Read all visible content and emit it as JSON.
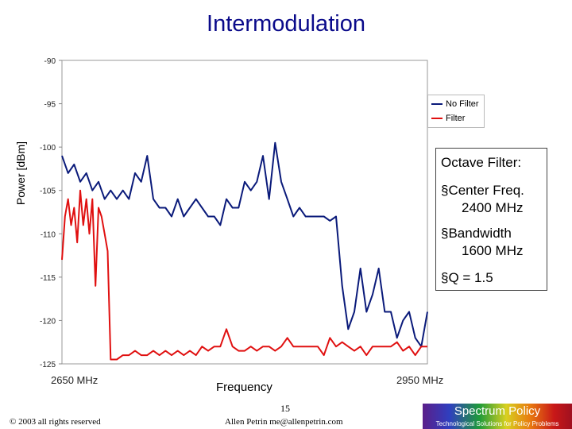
{
  "slide": {
    "title": "Intermodulation",
    "annotation": {
      "heading": "Octave Filter:",
      "items": [
        {
          "label": "§Center Freq.",
          "value": "2400 MHz"
        },
        {
          "label": "§Bandwidth",
          "value": "1600 MHz"
        },
        {
          "label": "§Q = 1.5",
          "value": ""
        }
      ]
    },
    "footer": {
      "copyright": "© 2003 all rights reserved",
      "page": "15",
      "author": "Allen Petrin  me@allenpetrin.com",
      "logo_title": "Spectrum Policy",
      "logo_tagline": "Technological Solutions for Policy Problems"
    }
  },
  "chart_data": {
    "type": "line",
    "title": "Intermodulation",
    "xlabel": "Frequency",
    "ylabel": "Power [dBm]",
    "x_tick_labels": [
      {
        "label": "2650 MHz",
        "value": 2650
      },
      {
        "label": "2950 MHz",
        "value": 2950
      }
    ],
    "xlim": [
      2630,
      2990
    ],
    "ylim": [
      -125,
      -90
    ],
    "yticks": [
      -90,
      -95,
      -100,
      -105,
      -110,
      -115,
      -120,
      -125
    ],
    "grid": false,
    "legend_position": "top-right",
    "colors": {
      "No Filter": "#0a1a7a",
      "Filter": "#e01010"
    },
    "series": [
      {
        "name": "No Filter",
        "x": [
          2630,
          2636,
          2642,
          2648,
          2654,
          2660,
          2666,
          2672,
          2678,
          2684,
          2690,
          2696,
          2702,
          2708,
          2714,
          2720,
          2726,
          2732,
          2738,
          2744,
          2750,
          2756,
          2762,
          2768,
          2774,
          2780,
          2786,
          2792,
          2798,
          2804,
          2810,
          2816,
          2822,
          2828,
          2834,
          2840,
          2846,
          2852,
          2858,
          2864,
          2870,
          2876,
          2882,
          2888,
          2894,
          2900,
          2906,
          2912,
          2918,
          2924,
          2930,
          2936,
          2942,
          2948,
          2954,
          2960,
          2966,
          2972,
          2978,
          2984,
          2990
        ],
        "y": [
          -101,
          -103,
          -102,
          -104,
          -103,
          -105,
          -104,
          -106,
          -105,
          -106,
          -105,
          -106,
          -103,
          -104,
          -101,
          -106,
          -107,
          -107,
          -108,
          -106,
          -108,
          -107,
          -106,
          -107,
          -108,
          -108,
          -109,
          -106,
          -107,
          -107,
          -104,
          -105,
          -104,
          -101,
          -106,
          -99.5,
          -104,
          -106,
          -108,
          -107,
          -108,
          -108,
          -108,
          -108,
          -108.5,
          -108,
          -116,
          -121,
          -119,
          -114,
          -119,
          -117,
          -114,
          -119,
          -119,
          -122,
          -120,
          -119,
          -122,
          -123,
          -119
        ]
      },
      {
        "name": "Filter",
        "x": [
          2630,
          2633,
          2636,
          2639,
          2642,
          2645,
          2648,
          2651,
          2654,
          2657,
          2660,
          2663,
          2666,
          2669,
          2672,
          2675,
          2678,
          2684,
          2690,
          2696,
          2702,
          2708,
          2714,
          2720,
          2726,
          2732,
          2738,
          2744,
          2750,
          2756,
          2762,
          2768,
          2774,
          2780,
          2786,
          2792,
          2798,
          2804,
          2810,
          2816,
          2822,
          2828,
          2834,
          2840,
          2846,
          2852,
          2858,
          2864,
          2870,
          2876,
          2882,
          2888,
          2894,
          2900,
          2906,
          2912,
          2918,
          2924,
          2930,
          2936,
          2942,
          2948,
          2954,
          2960,
          2966,
          2972,
          2978,
          2984,
          2990
        ],
        "y": [
          -113,
          -108,
          -106,
          -109,
          -107,
          -111,
          -105,
          -109,
          -106,
          -110,
          -106,
          -116,
          -107,
          -108,
          -110,
          -112,
          -124.5,
          -124.5,
          -124,
          -124,
          -123.5,
          -124,
          -124,
          -123.5,
          -124,
          -123.5,
          -124,
          -123.5,
          -124,
          -123.5,
          -124,
          -123,
          -123.5,
          -123,
          -123,
          -121,
          -123,
          -123.5,
          -123.5,
          -123,
          -123.5,
          -123,
          -123,
          -123.5,
          -123,
          -122,
          -123,
          -123,
          -123,
          -123,
          -123,
          -124,
          -122,
          -123,
          -122.5,
          -123,
          -123.5,
          -123,
          -124,
          -123,
          -123,
          -123,
          -123,
          -122.5,
          -123.5,
          -123,
          -124,
          -123,
          -123
        ]
      }
    ]
  }
}
